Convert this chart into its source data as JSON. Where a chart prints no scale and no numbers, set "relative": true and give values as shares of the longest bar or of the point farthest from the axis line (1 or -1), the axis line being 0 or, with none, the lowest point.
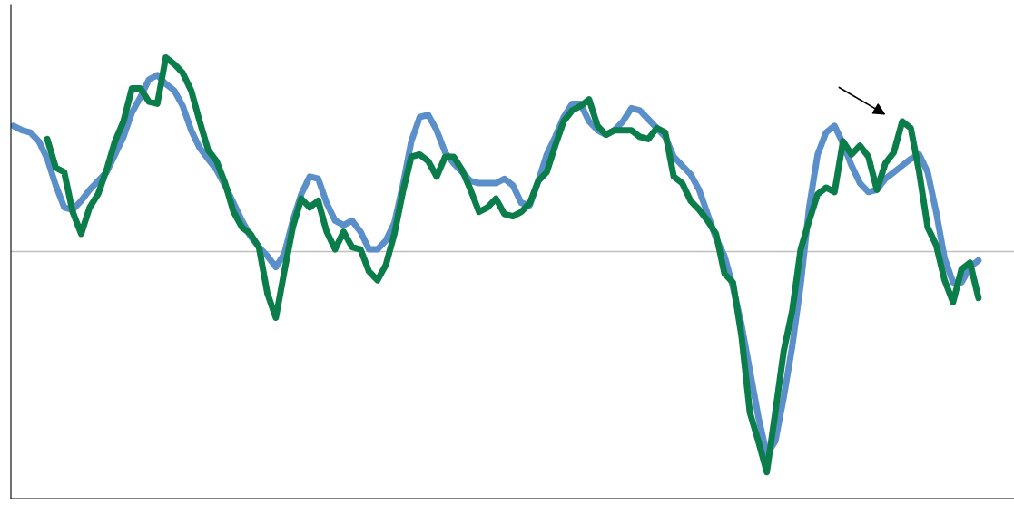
{
  "chart_data": {
    "type": "line",
    "relative": true,
    "marker": "none",
    "line_style": "solid",
    "categories": [
      null,
      null,
      null,
      null,
      null,
      null,
      null,
      null,
      null,
      null,
      null,
      null,
      null,
      null,
      null,
      null,
      null,
      null,
      null,
      null,
      null,
      null,
      null,
      null,
      null,
      null,
      null,
      null,
      null,
      null,
      null,
      null,
      null,
      null,
      null,
      null,
      null,
      null,
      null,
      null,
      null,
      null,
      null,
      null,
      null,
      null,
      null,
      null,
      null,
      null,
      null,
      null,
      null,
      null,
      null,
      null,
      null,
      null,
      null,
      null,
      null,
      null,
      null,
      null,
      null,
      null,
      null,
      null,
      null,
      null,
      null,
      null,
      null,
      null,
      null,
      null,
      null,
      null,
      null,
      null,
      null,
      null,
      null,
      null,
      null,
      null,
      null,
      null,
      null,
      null,
      null,
      null,
      null,
      null,
      null,
      null,
      null,
      null,
      null,
      null,
      null,
      null,
      null,
      null,
      null,
      null,
      null,
      null,
      null,
      null,
      null,
      null,
      null,
      null,
      null
    ],
    "series": [
      {
        "color": "#5b8fc9",
        "values": [
          0.57,
          0.55,
          0.54,
          0.5,
          0.42,
          0.3,
          0.2,
          0.19,
          0.23,
          0.28,
          0.32,
          0.36,
          0.44,
          0.52,
          0.63,
          0.7,
          0.78,
          0.8,
          0.76,
          0.73,
          0.66,
          0.55,
          0.47,
          0.42,
          0.37,
          0.3,
          0.22,
          0.14,
          0.07,
          0.02,
          -0.02,
          -0.07,
          -0.01,
          0.14,
          0.26,
          0.34,
          0.33,
          0.22,
          0.14,
          0.12,
          0.14,
          0.09,
          0.01,
          0.01,
          0.05,
          0.13,
          0.3,
          0.5,
          0.61,
          0.62,
          0.55,
          0.45,
          0.4,
          0.36,
          0.32,
          0.31,
          0.31,
          0.31,
          0.33,
          0.3,
          0.22,
          0.21,
          0.32,
          0.44,
          0.52,
          0.61,
          0.67,
          0.67,
          0.59,
          0.55,
          0.53,
          0.55,
          0.59,
          0.65,
          0.64,
          0.6,
          0.56,
          0.52,
          0.43,
          0.39,
          0.35,
          0.28,
          0.17,
          0.06,
          -0.02,
          -0.16,
          -0.33,
          -0.54,
          -0.75,
          -0.92,
          -0.86,
          -0.66,
          -0.43,
          -0.15,
          0.2,
          0.44,
          0.54,
          0.57,
          0.49,
          0.39,
          0.31,
          0.27,
          0.28,
          0.33,
          0.36,
          0.39,
          0.42,
          0.44,
          0.36,
          0.18,
          -0.03,
          -0.14,
          -0.14,
          -0.07,
          -0.04
        ]
      },
      {
        "color": "#0a7d4a",
        "values": [
          null,
          null,
          null,
          null,
          0.51,
          0.38,
          0.36,
          0.18,
          0.08,
          0.2,
          0.26,
          0.37,
          0.5,
          0.59,
          0.74,
          0.74,
          0.68,
          0.67,
          0.88,
          0.85,
          0.81,
          0.73,
          0.59,
          0.46,
          0.41,
          0.31,
          0.18,
          0.11,
          0.08,
          0.02,
          -0.19,
          -0.3,
          -0.09,
          0.11,
          0.24,
          0.2,
          0.23,
          0.09,
          0.01,
          0.09,
          0.02,
          0.01,
          -0.09,
          -0.13,
          -0.06,
          0.08,
          0.27,
          0.43,
          0.44,
          0.41,
          0.34,
          0.43,
          0.43,
          0.37,
          0.28,
          0.18,
          0.2,
          0.24,
          0.17,
          0.16,
          0.18,
          0.22,
          0.32,
          0.36,
          0.48,
          0.59,
          0.64,
          0.66,
          0.69,
          0.57,
          0.53,
          0.55,
          0.55,
          0.55,
          0.52,
          0.51,
          0.56,
          0.54,
          0.34,
          0.31,
          0.23,
          0.19,
          0.14,
          0.08,
          -0.1,
          -0.14,
          -0.38,
          -0.73,
          -0.86,
          -1,
          -0.73,
          -0.45,
          -0.27,
          0.01,
          0.14,
          0.26,
          0.29,
          0.27,
          0.5,
          0.44,
          0.48,
          0.43,
          0.28,
          0.4,
          0.45,
          0.59,
          0.56,
          0.36,
          0.11,
          0.03,
          -0.13,
          -0.23,
          -0.08,
          -0.05,
          -0.21
        ]
      }
    ],
    "ref_lines": [
      {
        "axis": "y",
        "value": 0,
        "color": "#c0c0c0",
        "line_style": "solid"
      }
    ]
  }
}
